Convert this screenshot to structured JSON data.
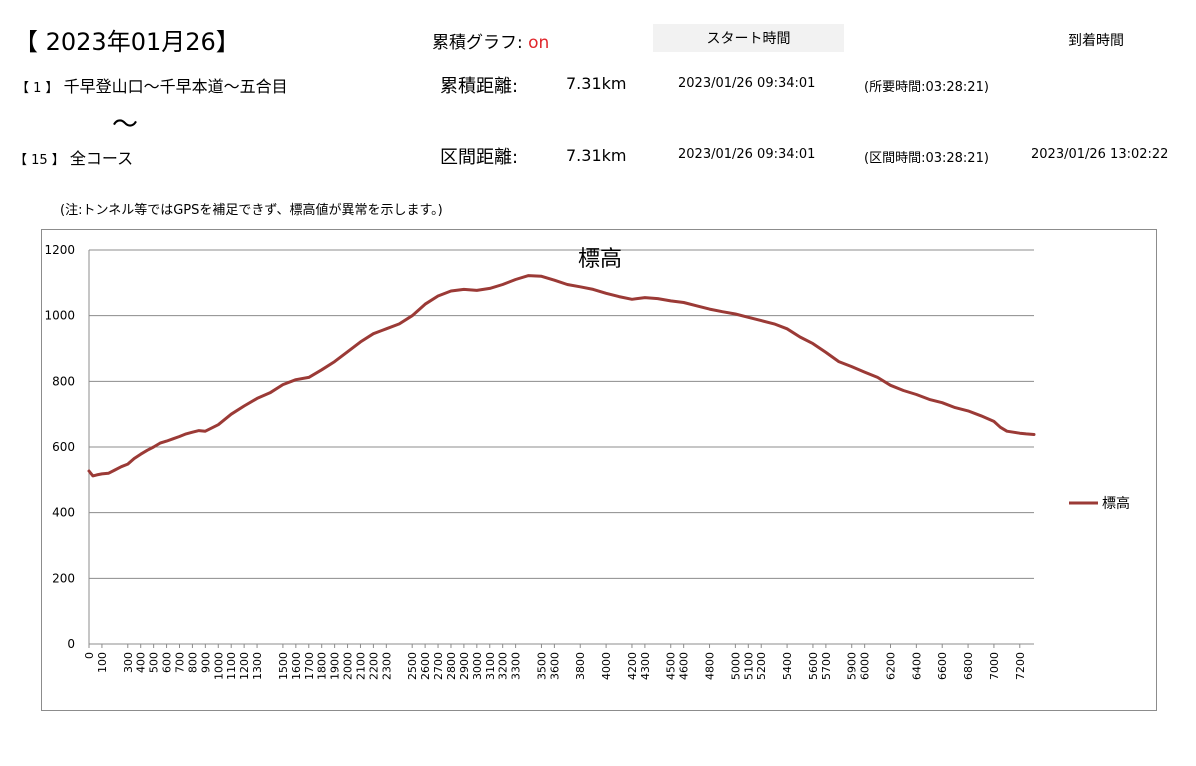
{
  "header": {
    "date_title": "【 2023年01月26】",
    "graph_toggle_label": "累積グラフ:",
    "graph_toggle_state": "on",
    "start_time_button": "スタート時間",
    "arrival_time_label": "到着時間"
  },
  "route": {
    "from_bracket": "【 1 】",
    "from_name": "千早登山口～千早本道～五合目",
    "tilde": "～",
    "to_bracket": "【 15 】",
    "to_name": "全コース"
  },
  "cumulative": {
    "label": "累積距離:",
    "distance": "7.31km",
    "start_time": "2023/01/26 09:34:01",
    "duration": "(所要時間:03:28:21)"
  },
  "section": {
    "label": "区間距離:",
    "distance": "7.31km",
    "start_time": "2023/01/26 09:34:01",
    "duration": "(区間時間:03:28:21)",
    "arrival_time": "2023/01/26 13:02:22"
  },
  "note": "(注:トンネル等ではGPSを補足できず、標高値が異常を示します。)",
  "chart_data": {
    "type": "line",
    "title": "標高",
    "xlabel": "",
    "ylabel": "",
    "ylim": [
      0,
      1200
    ],
    "yticks": [
      0,
      200,
      400,
      600,
      800,
      1000,
      1200
    ],
    "xlim": [
      0,
      7310
    ],
    "xticks": [
      0,
      100,
      300,
      400,
      500,
      600,
      700,
      800,
      900,
      1000,
      1100,
      1200,
      1300,
      1500,
      1600,
      1700,
      1800,
      1900,
      2000,
      2100,
      2200,
      2300,
      2500,
      2600,
      2700,
      2800,
      2900,
      3000,
      3100,
      3200,
      3300,
      3500,
      3600,
      3800,
      4000,
      4200,
      4300,
      4500,
      4600,
      4800,
      5000,
      5100,
      5200,
      5400,
      5600,
      5700,
      5900,
      6000,
      6200,
      6400,
      6600,
      6800,
      7000,
      7200
    ],
    "grid": true,
    "legend_position": "right",
    "line_color": "#9b3a36",
    "series": [
      {
        "name": "標高",
        "x": [
          0,
          30,
          60,
          100,
          150,
          200,
          250,
          300,
          350,
          400,
          450,
          500,
          550,
          600,
          650,
          700,
          750,
          800,
          850,
          900,
          1000,
          1100,
          1200,
          1300,
          1400,
          1500,
          1600,
          1700,
          1800,
          1900,
          2000,
          2100,
          2200,
          2300,
          2400,
          2500,
          2600,
          2700,
          2800,
          2900,
          3000,
          3100,
          3200,
          3300,
          3400,
          3500,
          3600,
          3700,
          3800,
          3900,
          4000,
          4100,
          4200,
          4300,
          4400,
          4500,
          4600,
          4700,
          4800,
          4900,
          5000,
          5100,
          5200,
          5300,
          5400,
          5500,
          5600,
          5700,
          5800,
          5900,
          6000,
          6100,
          6200,
          6300,
          6400,
          6500,
          6600,
          6700,
          6800,
          6900,
          7000,
          7050,
          7100,
          7150,
          7200,
          7250,
          7310
        ],
        "y": [
          527,
          512,
          515,
          518,
          520,
          530,
          540,
          548,
          565,
          578,
          590,
          600,
          612,
          618,
          625,
          632,
          640,
          645,
          650,
          648,
          668,
          700,
          725,
          748,
          765,
          790,
          805,
          812,
          835,
          860,
          890,
          920,
          945,
          960,
          975,
          1000,
          1035,
          1060,
          1075,
          1080,
          1077,
          1083,
          1095,
          1110,
          1122,
          1120,
          1108,
          1095,
          1088,
          1080,
          1068,
          1058,
          1050,
          1055,
          1052,
          1045,
          1040,
          1030,
          1020,
          1012,
          1005,
          995,
          985,
          975,
          960,
          935,
          915,
          888,
          860,
          845,
          828,
          812,
          788,
          772,
          760,
          745,
          735,
          720,
          710,
          695,
          678,
          660,
          648,
          645,
          642,
          640,
          638
        ]
      }
    ]
  }
}
